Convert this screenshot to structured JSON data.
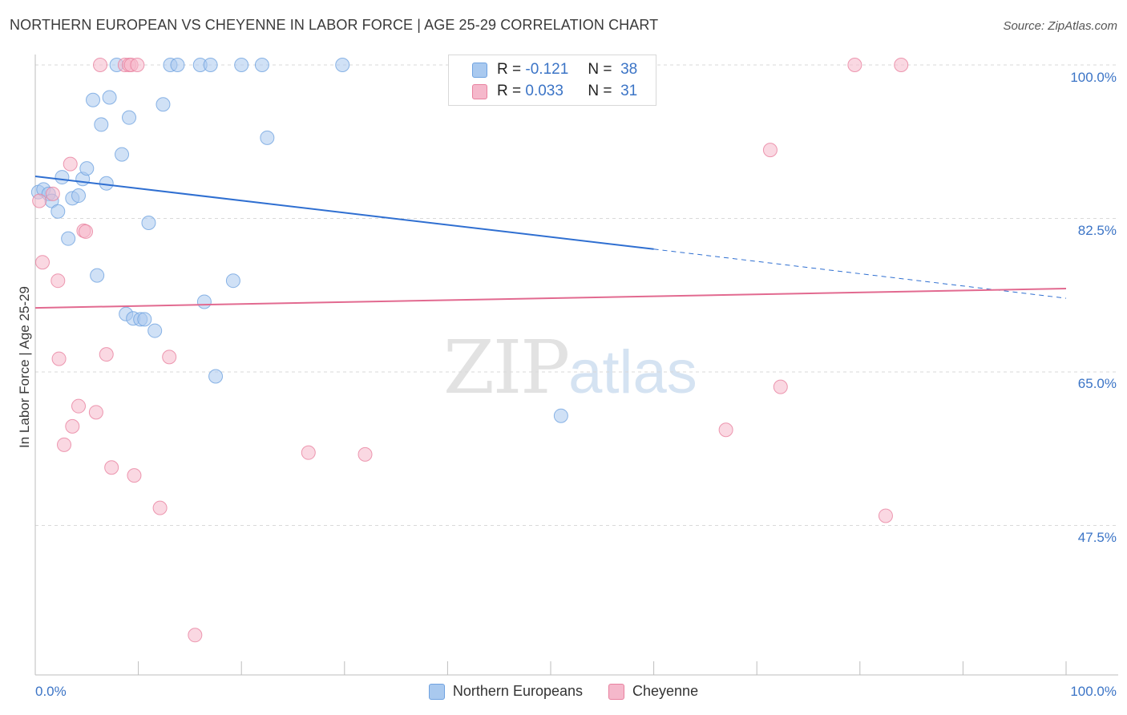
{
  "header": {
    "title": "NORTHERN EUROPEAN VS CHEYENNE IN LABOR FORCE | AGE 25-29 CORRELATION CHART",
    "source": "Source: ZipAtlas.com"
  },
  "watermark": {
    "zip": "ZIP",
    "atlas": "atlas"
  },
  "stats": {
    "rows": [
      {
        "r_label": "R =",
        "r_value": "-0.121",
        "n_label": "N =",
        "n_value": "38",
        "color": "#a9c9ef"
      },
      {
        "r_label": "R =",
        "r_value": "0.033",
        "n_label": "N =",
        "n_value": "31",
        "color": "#f5b8cb"
      }
    ]
  },
  "legend": {
    "items": [
      {
        "label": "Northern Europeans",
        "color": "#a9c9ef"
      },
      {
        "label": "Cheyenne",
        "color": "#f5b8cb"
      }
    ]
  },
  "chart_data": {
    "type": "scatter",
    "title": "NORTHERN EUROPEAN VS CHEYENNE IN LABOR FORCE | AGE 25-29 CORRELATION CHART",
    "xlabel": "",
    "ylabel": "In Labor Force | Age 25-29",
    "xlim": [
      0,
      100
    ],
    "ylim": [
      33,
      101.5
    ],
    "x_tick_labels": [
      "0.0%",
      "100.0%"
    ],
    "y_ticks": [
      100.0,
      82.5,
      65.0,
      47.5
    ],
    "y_tick_labels": [
      "100.0%",
      "82.5%",
      "65.0%",
      "47.5%"
    ],
    "grid": true,
    "legend_position": "bottom",
    "series": [
      {
        "name": "Northern Europeans",
        "color": "#6fa2e0",
        "fill": "#a9c9ef",
        "points": [
          [
            0.3,
            85.5
          ],
          [
            0.8,
            85.8
          ],
          [
            1.3,
            85.3
          ],
          [
            1.6,
            84.5
          ],
          [
            2.2,
            83.3
          ],
          [
            2.6,
            87.2
          ],
          [
            3.2,
            80.2
          ],
          [
            3.6,
            84.8
          ],
          [
            4.2,
            85.1
          ],
          [
            4.6,
            87.0
          ],
          [
            5.0,
            88.2
          ],
          [
            5.6,
            96.0
          ],
          [
            6.0,
            76.0
          ],
          [
            6.4,
            93.2
          ],
          [
            6.9,
            86.5
          ],
          [
            7.2,
            96.3
          ],
          [
            7.9,
            100.0
          ],
          [
            8.4,
            89.8
          ],
          [
            8.8,
            71.6
          ],
          [
            9.1,
            94.0
          ],
          [
            9.5,
            71.1
          ],
          [
            10.2,
            71.0
          ],
          [
            10.6,
            71.0
          ],
          [
            11.0,
            82.0
          ],
          [
            11.6,
            69.7
          ],
          [
            12.4,
            95.5
          ],
          [
            13.1,
            100.0
          ],
          [
            13.8,
            100.0
          ],
          [
            16.0,
            100.0
          ],
          [
            16.4,
            73.0
          ],
          [
            17.0,
            100.0
          ],
          [
            17.5,
            64.5
          ],
          [
            19.2,
            75.4
          ],
          [
            20.0,
            100.0
          ],
          [
            22.5,
            91.7
          ],
          [
            22.0,
            100.0
          ],
          [
            29.8,
            100.0
          ],
          [
            51.0,
            60.0
          ]
        ],
        "trend": {
          "x": [
            0,
            60.0
          ],
          "y": [
            87.3,
            79.0
          ],
          "dashed_to": [
            100,
            73.4
          ]
        }
      },
      {
        "name": "Cheyenne",
        "color": "#e8819f",
        "fill": "#f5b8cb",
        "points": [
          [
            0.4,
            84.5
          ],
          [
            0.7,
            77.5
          ],
          [
            1.7,
            85.3
          ],
          [
            2.2,
            75.4
          ],
          [
            2.3,
            66.5
          ],
          [
            2.8,
            56.7
          ],
          [
            3.4,
            88.7
          ],
          [
            3.6,
            58.8
          ],
          [
            4.2,
            61.1
          ],
          [
            4.7,
            81.1
          ],
          [
            4.9,
            81.0
          ],
          [
            5.9,
            60.4
          ],
          [
            6.3,
            100.0
          ],
          [
            6.9,
            67.0
          ],
          [
            7.4,
            54.1
          ],
          [
            8.7,
            100.0
          ],
          [
            9.1,
            100.0
          ],
          [
            9.3,
            100.0
          ],
          [
            9.6,
            53.2
          ],
          [
            9.9,
            100.0
          ],
          [
            12.1,
            49.5
          ],
          [
            13.0,
            66.7
          ],
          [
            15.5,
            35.0
          ],
          [
            26.5,
            55.8
          ],
          [
            32.0,
            55.6
          ],
          [
            67.0,
            58.4
          ],
          [
            71.3,
            90.3
          ],
          [
            72.3,
            63.3
          ],
          [
            79.5,
            100.0
          ],
          [
            82.5,
            48.6
          ],
          [
            84.0,
            100.0
          ]
        ],
        "trend": {
          "x": [
            0,
            100
          ],
          "y": [
            72.3,
            74.5
          ]
        }
      }
    ]
  }
}
